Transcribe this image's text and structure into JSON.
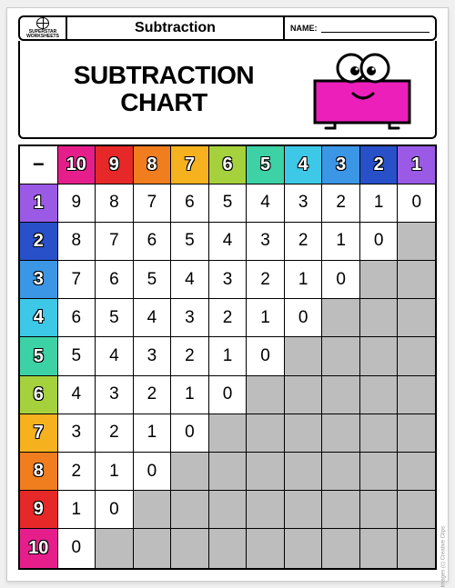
{
  "logo_text": "SUPERSTAR WORKSHEETS",
  "subject": "Subtraction",
  "name_label": "NAME:",
  "title_line1": "SUBTRACTION",
  "title_line2": "CHART",
  "corner_symbol": "−",
  "mascot": {
    "body_fill": "#ec1fbb",
    "body_stroke": "#000000",
    "eye_fill": "#ffffff"
  },
  "col_headers": [
    {
      "label": "10",
      "color": "#e61e8c"
    },
    {
      "label": "9",
      "color": "#e62828"
    },
    {
      "label": "8",
      "color": "#f07d1e"
    },
    {
      "label": "7",
      "color": "#f5b21e"
    },
    {
      "label": "6",
      "color": "#a5d23c"
    },
    {
      "label": "5",
      "color": "#3cd2a5"
    },
    {
      "label": "4",
      "color": "#3cc8e6"
    },
    {
      "label": "3",
      "color": "#3c96e6"
    },
    {
      "label": "2",
      "color": "#2850c8"
    },
    {
      "label": "1",
      "color": "#9b5ae6"
    }
  ],
  "row_headers": [
    {
      "label": "1",
      "color": "#9b5ae6"
    },
    {
      "label": "2",
      "color": "#2850c8"
    },
    {
      "label": "3",
      "color": "#3c96e6"
    },
    {
      "label": "4",
      "color": "#3cc8e6"
    },
    {
      "label": "5",
      "color": "#3cd2a5"
    },
    {
      "label": "6",
      "color": "#a5d23c"
    },
    {
      "label": "7",
      "color": "#f5b21e"
    },
    {
      "label": "8",
      "color": "#f07d1e"
    },
    {
      "label": "9",
      "color": "#e62828"
    },
    {
      "label": "10",
      "color": "#e61e8c"
    }
  ],
  "grid_values": [
    [
      "9",
      "8",
      "7",
      "6",
      "5",
      "4",
      "3",
      "2",
      "1",
      "0"
    ],
    [
      "8",
      "7",
      "6",
      "5",
      "4",
      "3",
      "2",
      "1",
      "0",
      null
    ],
    [
      "7",
      "6",
      "5",
      "4",
      "3",
      "2",
      "1",
      "0",
      null,
      null
    ],
    [
      "6",
      "5",
      "4",
      "3",
      "2",
      "1",
      "0",
      null,
      null,
      null
    ],
    [
      "5",
      "4",
      "3",
      "2",
      "1",
      "0",
      null,
      null,
      null,
      null
    ],
    [
      "4",
      "3",
      "2",
      "1",
      "0",
      null,
      null,
      null,
      null,
      null
    ],
    [
      "3",
      "2",
      "1",
      "0",
      null,
      null,
      null,
      null,
      null,
      null
    ],
    [
      "2",
      "1",
      "0",
      null,
      null,
      null,
      null,
      null,
      null,
      null
    ],
    [
      "1",
      "0",
      null,
      null,
      null,
      null,
      null,
      null,
      null,
      null
    ],
    [
      "0",
      null,
      null,
      null,
      null,
      null,
      null,
      null,
      null,
      null
    ]
  ],
  "shaded_color": "#bdbdbd",
  "credit_text": "Images (c) Creative Clips"
}
